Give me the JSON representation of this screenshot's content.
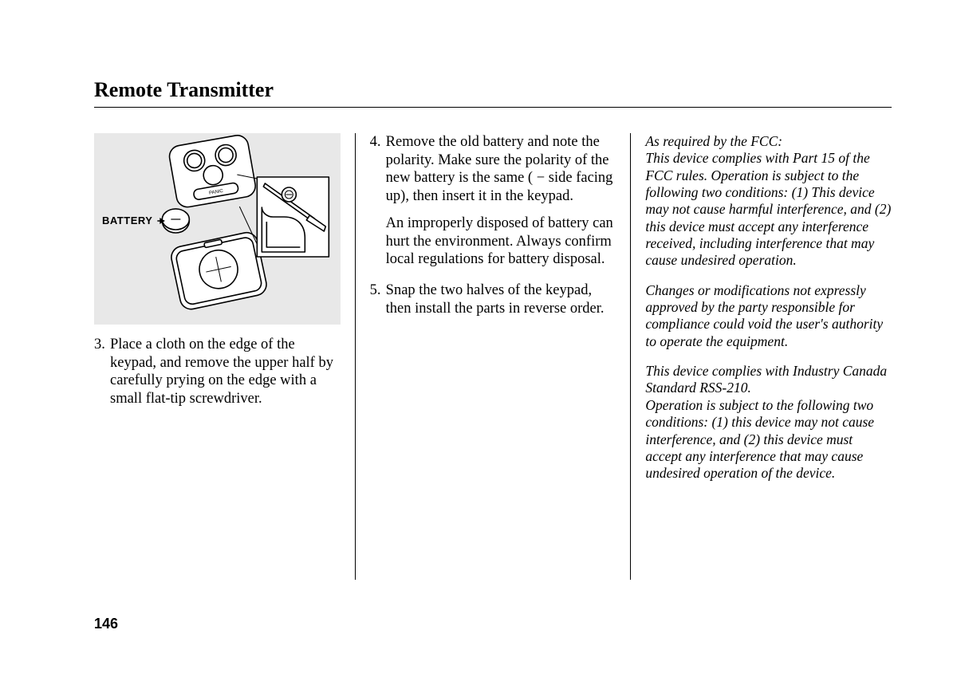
{
  "title": "Remote Transmitter",
  "page_number": "146",
  "figure": {
    "battery_label": "BATTERY",
    "bg_color": "#e8e8e8",
    "stroke_color": "#000000",
    "fill_color": "#ffffff"
  },
  "col1": {
    "step3": {
      "num": "3.",
      "text": "Place a cloth on the edge of the keypad, and remove the upper half by carefully prying on the edge with a small flat-tip screwdriver."
    }
  },
  "col2": {
    "step4": {
      "num": "4.",
      "text": "Remove the old battery and note the polarity. Make sure the polarity of the new battery is the same ( − side facing up), then insert it in the keypad.",
      "para2": "An improperly disposed of battery can hurt the environment. Always confirm local regulations for battery disposal."
    },
    "step5": {
      "num": "5.",
      "text": "Snap the two halves of the keypad, then install the parts in reverse order."
    }
  },
  "col3": {
    "legal1": "As required by the FCC:\nThis device complies with Part 15 of the FCC rules. Operation is subject to the following two conditions: (1) This device may not cause harmful interference, and (2) this device must accept any interference received, including interference that may cause undesired operation.",
    "legal2": "Changes or modifications not expressly approved by the party responsible for compliance could void the user's authority to operate the equipment.",
    "legal3": "This device complies with Industry Canada Standard RSS-210.\nOperation is subject to the following two conditions: (1) this device may not cause interference, and (2) this device must accept any interference that may cause undesired operation of the device."
  }
}
